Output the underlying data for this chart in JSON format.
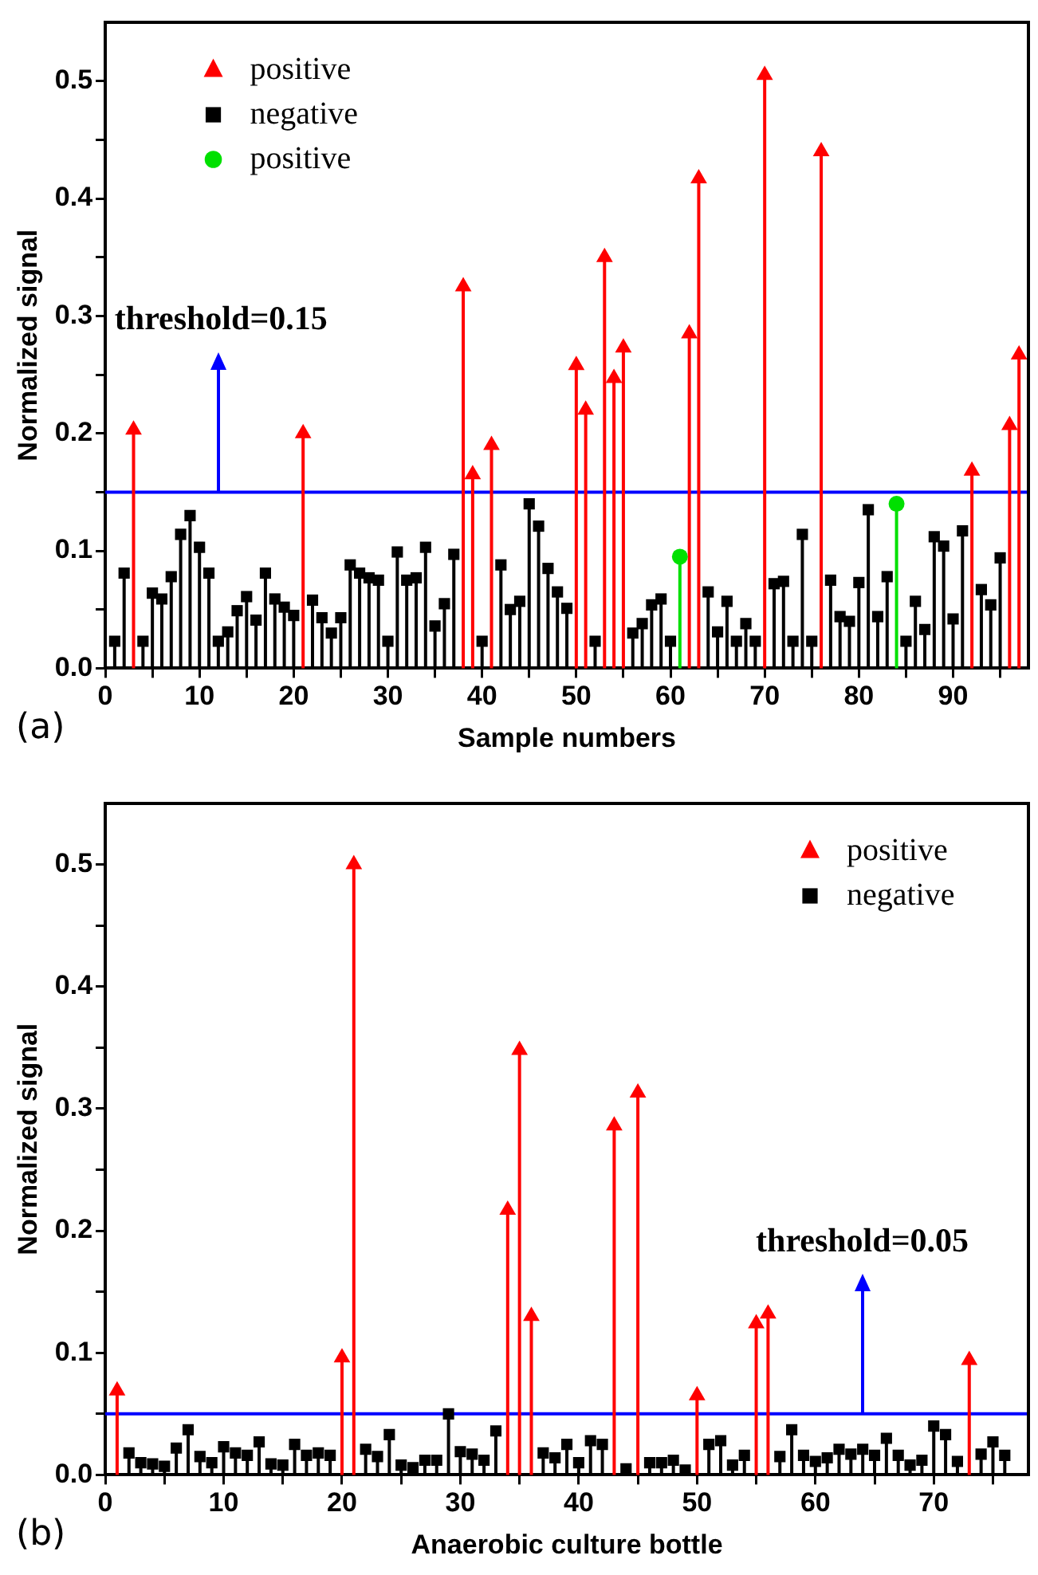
{
  "chart_data": [
    {
      "type": "lollipop",
      "xlabel": "Sample numbers",
      "ylabel": "Normalized signal",
      "legend": "top left",
      "annotations": [
        "(a)"
      ],
      "xlim": [
        0,
        98
      ],
      "xticks": [
        0,
        {
          "value": 5,
          "label": null
        },
        10,
        {
          "value": 15,
          "label": null
        },
        20,
        {
          "value": 25,
          "label": null
        },
        30,
        {
          "value": 35,
          "label": null
        },
        40,
        {
          "value": 45,
          "label": null
        },
        50,
        {
          "value": 55,
          "label": null
        },
        60,
        {
          "value": 65,
          "label": null
        },
        70,
        {
          "value": 75,
          "label": null
        },
        80,
        {
          "value": 85,
          "label": null
        },
        90,
        {
          "value": 95,
          "label": null
        }
      ],
      "ylim": [
        0,
        0.55
      ],
      "yticks": [
        {
          "value": 0,
          "label": "0.0"
        },
        {
          "value": 0.05,
          "label": null
        },
        0.1,
        {
          "value": 0.15,
          "label": null
        },
        0.2,
        {
          "value": 0.25,
          "label": null
        },
        0.3,
        {
          "value": 0.35,
          "label": null
        },
        0.4,
        {
          "value": 0.45,
          "label": null
        },
        0.5
      ],
      "ref_lines": [
        {
          "axis": "y",
          "value": 0.15,
          "label": "threshold=0.15",
          "color": "#0000ff"
        }
      ],
      "series": [
        {
          "name": "positive",
          "color": "#ff0000",
          "marker": "triangle",
          "x": [
            3,
            21,
            38,
            39,
            41,
            50,
            51,
            53,
            54,
            55,
            62,
            63,
            70,
            76,
            92,
            96,
            97
          ],
          "values": [
            0.203,
            0.2,
            0.325,
            0.165,
            0.19,
            0.258,
            0.22,
            0.35,
            0.247,
            0.273,
            0.285,
            0.417,
            0.505,
            0.44,
            0.168,
            0.207,
            0.267
          ]
        },
        {
          "name": "negative",
          "color": "#000000",
          "marker": "square",
          "x": [
            1,
            2,
            4,
            5,
            6,
            7,
            8,
            9,
            10,
            11,
            12,
            13,
            14,
            15,
            16,
            17,
            18,
            19,
            20,
            22,
            23,
            24,
            25,
            26,
            27,
            28,
            29,
            30,
            31,
            32,
            33,
            34,
            35,
            36,
            37,
            40,
            42,
            43,
            44,
            45,
            46,
            47,
            48,
            49,
            52,
            56,
            57,
            58,
            59,
            60,
            64,
            65,
            66,
            67,
            68,
            69,
            71,
            72,
            73,
            74,
            75,
            77,
            78,
            79,
            80,
            81,
            82,
            83,
            85,
            86,
            87,
            88,
            89,
            90,
            91,
            93,
            94,
            95
          ],
          "values": [
            0.023,
            0.081,
            0.023,
            0.064,
            0.059,
            0.078,
            0.114,
            0.13,
            0.103,
            0.081,
            0.023,
            0.031,
            0.049,
            0.061,
            0.041,
            0.081,
            0.059,
            0.052,
            0.045,
            0.058,
            0.043,
            0.03,
            0.043,
            0.088,
            0.081,
            0.077,
            0.075,
            0.023,
            0.099,
            0.075,
            0.077,
            0.103,
            0.036,
            0.055,
            0.097,
            0.023,
            0.088,
            0.05,
            0.057,
            0.14,
            0.121,
            0.085,
            0.065,
            0.051,
            0.023,
            0.03,
            0.038,
            0.054,
            0.059,
            0.023,
            0.065,
            0.031,
            0.057,
            0.023,
            0.038,
            0.023,
            0.072,
            0.074,
            0.023,
            0.114,
            0.023,
            0.075,
            0.044,
            0.04,
            0.073,
            0.135,
            0.044,
            0.078,
            0.023,
            0.057,
            0.033,
            0.112,
            0.104,
            0.042,
            0.117,
            0.067,
            0.054,
            0.094
          ]
        },
        {
          "name": "positive",
          "color": "#00e000",
          "marker": "circle",
          "x": [
            61,
            84
          ],
          "values": [
            0.095,
            0.14
          ]
        }
      ]
    },
    {
      "type": "lollipop",
      "xlabel": "Anaerobic culture bottle",
      "ylabel": "Normalized signal",
      "legend": "top right",
      "annotations": [
        "(b)"
      ],
      "xlim": [
        0,
        78
      ],
      "xticks": [
        0,
        {
          "value": 5,
          "label": null
        },
        10,
        {
          "value": 15,
          "label": null
        },
        20,
        {
          "value": 25,
          "label": null
        },
        30,
        {
          "value": 35,
          "label": null
        },
        40,
        {
          "value": 45,
          "label": null
        },
        50,
        {
          "value": 55,
          "label": null
        },
        60,
        {
          "value": 65,
          "label": null
        },
        70,
        {
          "value": 75,
          "label": null
        }
      ],
      "ylim": [
        0,
        0.55
      ],
      "yticks": [
        {
          "value": 0,
          "label": "0.0"
        },
        {
          "value": 0.05,
          "label": null
        },
        0.1,
        {
          "value": 0.15,
          "label": null
        },
        0.2,
        {
          "value": 0.25,
          "label": null
        },
        0.3,
        {
          "value": 0.35,
          "label": null
        },
        0.4,
        {
          "value": 0.45,
          "label": null
        },
        0.5
      ],
      "ref_lines": [
        {
          "axis": "y",
          "value": 0.05,
          "label": "threshold=0.05",
          "color": "#0000ff"
        }
      ],
      "series": [
        {
          "name": "positive",
          "color": "#ff0000",
          "marker": "triangle",
          "x": [
            1,
            20,
            21,
            34,
            35,
            36,
            43,
            45,
            50,
            55,
            56,
            73
          ],
          "values": [
            0.069,
            0.096,
            0.5,
            0.217,
            0.348,
            0.13,
            0.286,
            0.313,
            0.065,
            0.124,
            0.132,
            0.094
          ]
        },
        {
          "name": "negative",
          "color": "#000000",
          "marker": "square",
          "x": [
            2,
            3,
            4,
            5,
            6,
            7,
            8,
            9,
            10,
            11,
            12,
            13,
            14,
            15,
            16,
            17,
            18,
            19,
            22,
            23,
            24,
            25,
            26,
            27,
            28,
            29,
            30,
            31,
            32,
            33,
            37,
            38,
            39,
            40,
            41,
            42,
            44,
            46,
            47,
            48,
            49,
            51,
            52,
            53,
            54,
            57,
            58,
            59,
            60,
            61,
            62,
            63,
            64,
            65,
            66,
            67,
            68,
            69,
            70,
            71,
            72,
            74,
            75,
            76
          ],
          "values": [
            0.018,
            0.01,
            0.009,
            0.007,
            0.022,
            0.037,
            0.015,
            0.01,
            0.023,
            0.018,
            0.016,
            0.027,
            0.009,
            0.008,
            0.025,
            0.016,
            0.018,
            0.016,
            0.021,
            0.015,
            0.033,
            0.008,
            0.006,
            0.012,
            0.012,
            0.05,
            0.019,
            0.017,
            0.012,
            0.036,
            0.018,
            0.014,
            0.025,
            0.01,
            0.028,
            0.025,
            0.005,
            0.01,
            0.01,
            0.012,
            0.004,
            0.025,
            0.028,
            0.008,
            0.016,
            0.015,
            0.037,
            0.016,
            0.011,
            0.014,
            0.021,
            0.017,
            0.021,
            0.016,
            0.03,
            0.016,
            0.008,
            0.012,
            0.04,
            0.033,
            0.011,
            0.017,
            0.027,
            0.016
          ]
        }
      ]
    }
  ]
}
